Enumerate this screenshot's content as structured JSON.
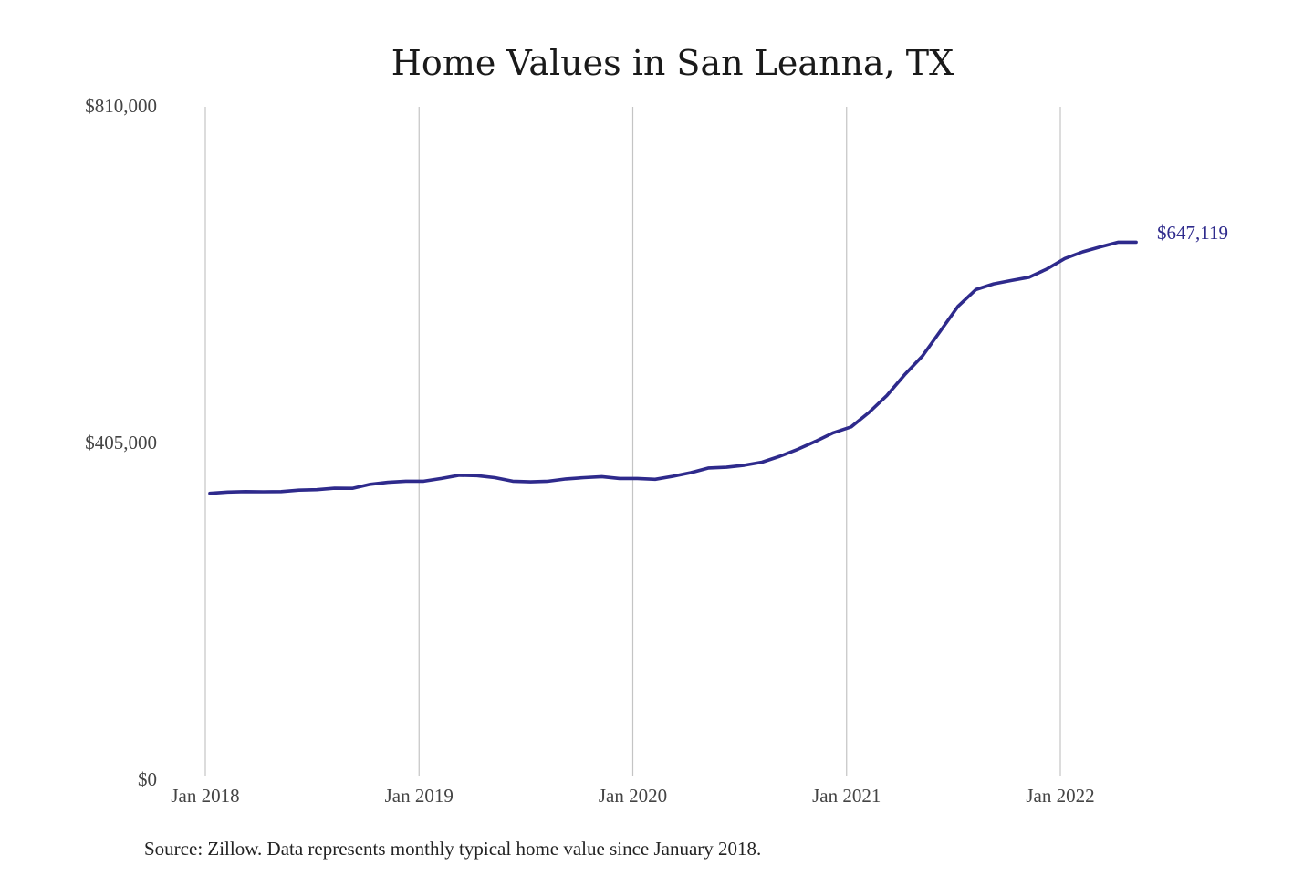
{
  "chart_data": {
    "type": "line",
    "title": "Home Values in San Leanna, TX",
    "xlabel": "",
    "ylabel": "",
    "ylim": [
      0,
      810000
    ],
    "y_ticks": [
      {
        "value": 0,
        "label": "$0"
      },
      {
        "value": 405000,
        "label": "$405,000"
      },
      {
        "value": 810000,
        "label": "$810,000"
      }
    ],
    "x_ticks": [
      {
        "value": "2018-01",
        "label": "Jan 2018"
      },
      {
        "value": "2019-01",
        "label": "Jan 2019"
      },
      {
        "value": "2020-01",
        "label": "Jan 2020"
      },
      {
        "value": "2021-01",
        "label": "Jan 2021"
      },
      {
        "value": "2022-01",
        "label": "Jan 2022"
      }
    ],
    "grid": "vertical lines at year ticks",
    "line_color": "#2e2a8c",
    "end_label": "$647,119",
    "source": "Source: Zillow. Data represents monthly typical home value since January 2018.",
    "series": [
      {
        "x": [
          "2018-01",
          "2018-02",
          "2018-03",
          "2018-04",
          "2018-05",
          "2018-06",
          "2018-07",
          "2018-08",
          "2018-09",
          "2018-10",
          "2018-11",
          "2018-12",
          "2019-01",
          "2019-02",
          "2019-03",
          "2019-04",
          "2019-05",
          "2019-06",
          "2019-07",
          "2019-08",
          "2019-09",
          "2019-10",
          "2019-11",
          "2019-12",
          "2020-01",
          "2020-02",
          "2020-03",
          "2020-04",
          "2020-05",
          "2020-06",
          "2020-07",
          "2020-08",
          "2020-09",
          "2020-10",
          "2020-11",
          "2020-12",
          "2021-01",
          "2021-02",
          "2021-03",
          "2021-04",
          "2021-05",
          "2021-06",
          "2021-07",
          "2021-08",
          "2021-09",
          "2021-10",
          "2021-11",
          "2021-12",
          "2022-01",
          "2022-02",
          "2022-03",
          "2022-04",
          "2022-05"
        ],
        "values": [
          345000,
          346500,
          347000,
          346800,
          347000,
          348800,
          349300,
          351100,
          351000,
          355800,
          358200,
          359600,
          359600,
          362800,
          366700,
          366300,
          363800,
          359600,
          358800,
          359600,
          362300,
          363800,
          365000,
          362800,
          362800,
          361900,
          365500,
          369900,
          375500,
          376300,
          378800,
          382500,
          389600,
          398000,
          407500,
          417800,
          425000,
          442300,
          462500,
          487500,
          510000,
          540000,
          570000,
          590000,
          597000,
          601000,
          605000,
          615000,
          627500,
          635500,
          641500,
          647119,
          647119
        ]
      }
    ]
  }
}
